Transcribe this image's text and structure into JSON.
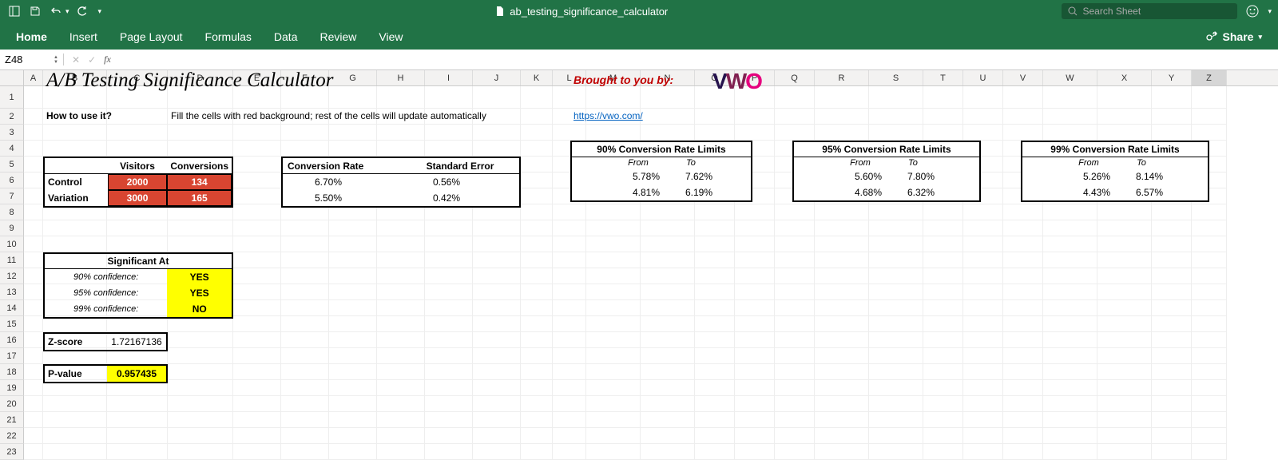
{
  "titlebar": {
    "filename": "ab_testing_significance_calculator",
    "search_placeholder": "Search Sheet"
  },
  "ribbon": {
    "tabs": [
      "Home",
      "Insert",
      "Page Layout",
      "Formulas",
      "Data",
      "Review",
      "View"
    ],
    "share": "Share"
  },
  "formulabar": {
    "namebox": "Z48",
    "fx": "fx"
  },
  "columns": [
    "A",
    "B",
    "C",
    "D",
    "E",
    "F",
    "G",
    "H",
    "I",
    "J",
    "K",
    "L",
    "M",
    "N",
    "O",
    "P",
    "Q",
    "R",
    "S",
    "T",
    "U",
    "V",
    "W",
    "X",
    "Y",
    "Z"
  ],
  "row_count": 23,
  "content": {
    "main_title": "A/B Testing Significance Calculator",
    "brought": "Brought to you by:",
    "logo": {
      "v": "V",
      "w": "W",
      "o": "O"
    },
    "howto_label": "How to use it?",
    "howto_text": "Fill the cells with red background; rest of the cells will update automatically",
    "link": "https://vwo.com/",
    "inputs_table": {
      "col1": "Visitors",
      "col2": "Conversions",
      "row1_label": "Control",
      "row2_label": "Variation",
      "control_visitors": "2000",
      "control_conv": "134",
      "var_visitors": "3000",
      "var_conv": "165",
      "colors": {
        "red_bg": "#d84531",
        "red_text": "#ffffff"
      }
    },
    "conv_table": {
      "h1": "Conversion Rate",
      "h2": "Standard Error",
      "r1c1": "6.70%",
      "r1c2": "0.56%",
      "r2c1": "5.50%",
      "r2c2": "0.42%"
    },
    "limits90": {
      "title": "90% Conversion Rate Limits",
      "from": "From",
      "to": "To",
      "r1f": "5.78%",
      "r1t": "7.62%",
      "r2f": "4.81%",
      "r2t": "6.19%"
    },
    "limits95": {
      "title": "95% Conversion Rate Limits",
      "from": "From",
      "to": "To",
      "r1f": "5.60%",
      "r1t": "7.80%",
      "r2f": "4.68%",
      "r2t": "6.32%"
    },
    "limits99": {
      "title": "99% Conversion Rate Limits",
      "from": "From",
      "to": "To",
      "r1f": "5.26%",
      "r1t": "8.14%",
      "r2f": "4.43%",
      "r2t": "6.57%"
    },
    "sig": {
      "title": "Significant At",
      "l90": "90% confidence:",
      "v90": "YES",
      "l95": "95% confidence:",
      "v95": "YES",
      "l99": "99% confidence:",
      "v99": "NO"
    },
    "zscore": {
      "label": "Z-score",
      "value": "1.72167136"
    },
    "pvalue": {
      "label": "P-value",
      "value": "0.957435"
    },
    "colors": {
      "yellow": "#ffff00",
      "border": "#000000",
      "link": "#0563c1",
      "red_text": "#c00000",
      "ribbon_green": "#217346"
    }
  }
}
